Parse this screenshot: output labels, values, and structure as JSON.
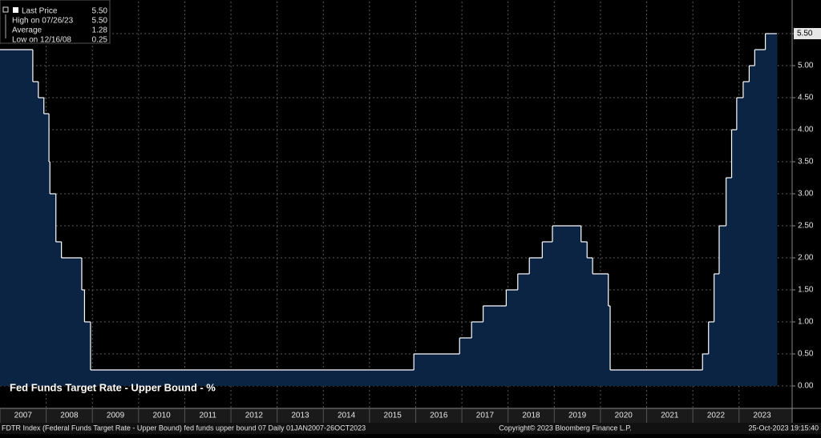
{
  "chart_data": {
    "type": "step-area",
    "title": "Fed Funds Target Rate - Upper Bound - %",
    "stats": [
      {
        "label": "Last Price",
        "value": "5.50"
      },
      {
        "label": "High on 07/26/23",
        "value": "5.50"
      },
      {
        "label": "Average",
        "value": "1.28"
      },
      {
        "label": "Low on 12/16/08",
        "value": "0.25"
      }
    ],
    "last_price_label": "5.50",
    "x": [
      2007.0,
      2007.71,
      2007.83,
      2007.95,
      2008.06,
      2008.08,
      2008.21,
      2008.33,
      2008.77,
      2008.83,
      2008.96,
      2015.96,
      2016.95,
      2017.21,
      2017.46,
      2017.96,
      2018.21,
      2018.46,
      2018.74,
      2018.96,
      2019.58,
      2019.71,
      2019.83,
      2020.17,
      2020.21,
      2022.21,
      2022.34,
      2022.46,
      2022.57,
      2022.72,
      2022.84,
      2022.95,
      2023.09,
      2023.22,
      2023.34,
      2023.57,
      2023.82
    ],
    "series": [
      {
        "name": "Last Price",
        "color": "#ffffff",
        "fill": "#0c2444",
        "values": [
          5.25,
          4.75,
          4.5,
          4.25,
          3.5,
          3.0,
          2.25,
          2.0,
          1.5,
          1.0,
          0.25,
          0.5,
          0.75,
          1.0,
          1.25,
          1.5,
          1.75,
          2.0,
          2.25,
          2.5,
          2.25,
          2.0,
          1.75,
          1.25,
          0.25,
          0.5,
          1.0,
          1.75,
          2.5,
          3.25,
          4.0,
          4.5,
          4.75,
          5.0,
          5.25,
          5.5,
          5.5
        ]
      }
    ],
    "xlim": [
      2007,
      2024.15
    ],
    "xticks": [
      {
        "value": 2007,
        "label": "2007"
      },
      {
        "value": 2008,
        "label": "2008"
      },
      {
        "value": 2009,
        "label": "2009"
      },
      {
        "value": 2010,
        "label": "2010"
      },
      {
        "value": 2011,
        "label": "2011"
      },
      {
        "value": 2012,
        "label": "2012"
      },
      {
        "value": 2013,
        "label": "2013"
      },
      {
        "value": 2014,
        "label": "2014"
      },
      {
        "value": 2015,
        "label": "2015"
      },
      {
        "value": 2016,
        "label": "2016"
      },
      {
        "value": 2017,
        "label": "2017"
      },
      {
        "value": 2018,
        "label": "2018"
      },
      {
        "value": 2019,
        "label": "2019"
      },
      {
        "value": 2020,
        "label": "2020"
      },
      {
        "value": 2021,
        "label": "2021"
      },
      {
        "value": 2022,
        "label": "2022"
      },
      {
        "value": 2023,
        "label": "2023"
      }
    ],
    "ylim": [
      -0.35,
      6.0
    ],
    "yticks": [
      {
        "value": 0,
        "label": "0.00"
      },
      {
        "value": 0.5,
        "label": "0.50"
      },
      {
        "value": 1,
        "label": "1.00"
      },
      {
        "value": 1.5,
        "label": "1.50"
      },
      {
        "value": 2,
        "label": "2.00"
      },
      {
        "value": 2.5,
        "label": "2.50"
      },
      {
        "value": 3,
        "label": "3.00"
      },
      {
        "value": 3.5,
        "label": "3.50"
      },
      {
        "value": 4,
        "label": "4.00"
      },
      {
        "value": 4.5,
        "label": "4.50"
      },
      {
        "value": 5,
        "label": "5.00"
      },
      {
        "value": 5.5,
        "label": "5.50"
      }
    ],
    "grid": true,
    "footer": {
      "left": "FDTR Index (Federal Funds Target Rate - Upper Bound) fed funds upper bound 07  Daily 01JAN2007-26OCT2023",
      "center": "Copyright© 2023 Bloomberg Finance L.P.",
      "right": "25-Oct-2023 19:15:40"
    }
  }
}
